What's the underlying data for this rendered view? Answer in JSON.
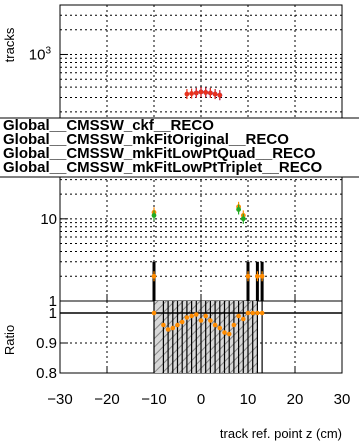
{
  "chart_data": {
    "type": "scatter",
    "x_axis": {
      "label": "track ref. point z (cm)",
      "range": [
        -30,
        30
      ],
      "ticks": [
        "−30",
        "−20",
        "−10",
        "0",
        "10",
        "20",
        "30"
      ],
      "tick_values": [
        -30,
        -20,
        -10,
        0,
        10,
        20,
        30
      ]
    },
    "top_panel": {
      "ylabel": "tracks",
      "scale": "log",
      "ylim": [
        1,
        4000
      ],
      "ticks": [
        {
          "label": "1",
          "value": 1
        },
        {
          "label": "10",
          "value": 10
        },
        {
          "label": "10",
          "exp": "3",
          "value": 1000
        }
      ],
      "grid": true,
      "series": [
        {
          "name": "Global__CMSSW_ckf__RECO",
          "color": "#0a0aff",
          "marker": "circle",
          "points": [
            [
              -1,
              340
            ],
            [
              0,
              350
            ],
            [
              1,
              345
            ],
            [
              2,
              340
            ],
            [
              3,
              330
            ],
            [
              4,
              320
            ]
          ]
        },
        {
          "name": "Global__CMSSW_mkFitOriginal__RECO",
          "color": "#e8321e",
          "marker": "circle",
          "points": [
            [
              -3,
              330
            ],
            [
              -2,
              335
            ],
            [
              -1,
              340
            ],
            [
              0,
              350
            ],
            [
              1,
              345
            ],
            [
              2,
              340
            ],
            [
              3,
              330
            ],
            [
              4,
              320
            ]
          ]
        },
        {
          "name": "Global__CMSSW_mkFitLowPtQuad__RECO",
          "color": "#ff8c00",
          "marker": "circle",
          "points": [
            [
              -10,
              12
            ],
            [
              -10,
              2
            ],
            [
              8,
              14
            ],
            [
              9,
              11
            ],
            [
              10,
              2
            ],
            [
              12,
              2
            ],
            [
              13,
              2
            ]
          ]
        },
        {
          "name": "Global__CMSSW_mkFitLowPtTriplet__RECO",
          "color": "#22aa22",
          "marker": "circle",
          "points": [
            [
              -10,
              11
            ],
            [
              8,
              13
            ],
            [
              9,
              10
            ]
          ]
        }
      ],
      "error_bars": [
        {
          "x": -10,
          "low": 1,
          "high": 3
        },
        {
          "x": 10,
          "low": 1,
          "high": 3
        },
        {
          "x": 12,
          "low": 1,
          "high": 3
        },
        {
          "x": 13,
          "low": 1,
          "high": 3
        }
      ]
    },
    "legend": {
      "placement": "top",
      "entries": [
        "Global__CMSSW_ckf__RECO",
        "Global__CMSSW_mkFitOriginal__RECO",
        "Global__CMSSW_mkFitLowPtQuad__RECO",
        "Global__CMSSW_mkFitLowPtTriplet__RECO"
      ]
    },
    "ratio_panel": {
      "ylabel": "Ratio",
      "ylim": [
        0.8,
        1.04
      ],
      "ticks": [
        {
          "label": "0.8",
          "value": 0.8
        },
        {
          "label": "0.9",
          "value": 0.9
        },
        {
          "label": "1",
          "value": 1.0
        }
      ],
      "reference_line": 1.0,
      "band_x": [
        -10,
        12
      ],
      "points": [
        [
          -10,
          1.0
        ],
        [
          -8,
          0.96
        ],
        [
          -7,
          0.945
        ],
        [
          -6,
          0.95
        ],
        [
          -5,
          0.96
        ],
        [
          -4,
          0.97
        ],
        [
          -3,
          0.985
        ],
        [
          -2,
          0.99
        ],
        [
          -1,
          0.995
        ],
        [
          0,
          0.975
        ],
        [
          1,
          0.99
        ],
        [
          2,
          0.975
        ],
        [
          3,
          0.96
        ],
        [
          4,
          0.95
        ],
        [
          5,
          0.935
        ],
        [
          6,
          0.93
        ],
        [
          7,
          0.96
        ],
        [
          8,
          0.99
        ],
        [
          9,
          0.98
        ],
        [
          10,
          1.0
        ],
        [
          11,
          1.0
        ],
        [
          12,
          1.0
        ],
        [
          13,
          1.0
        ]
      ]
    }
  }
}
